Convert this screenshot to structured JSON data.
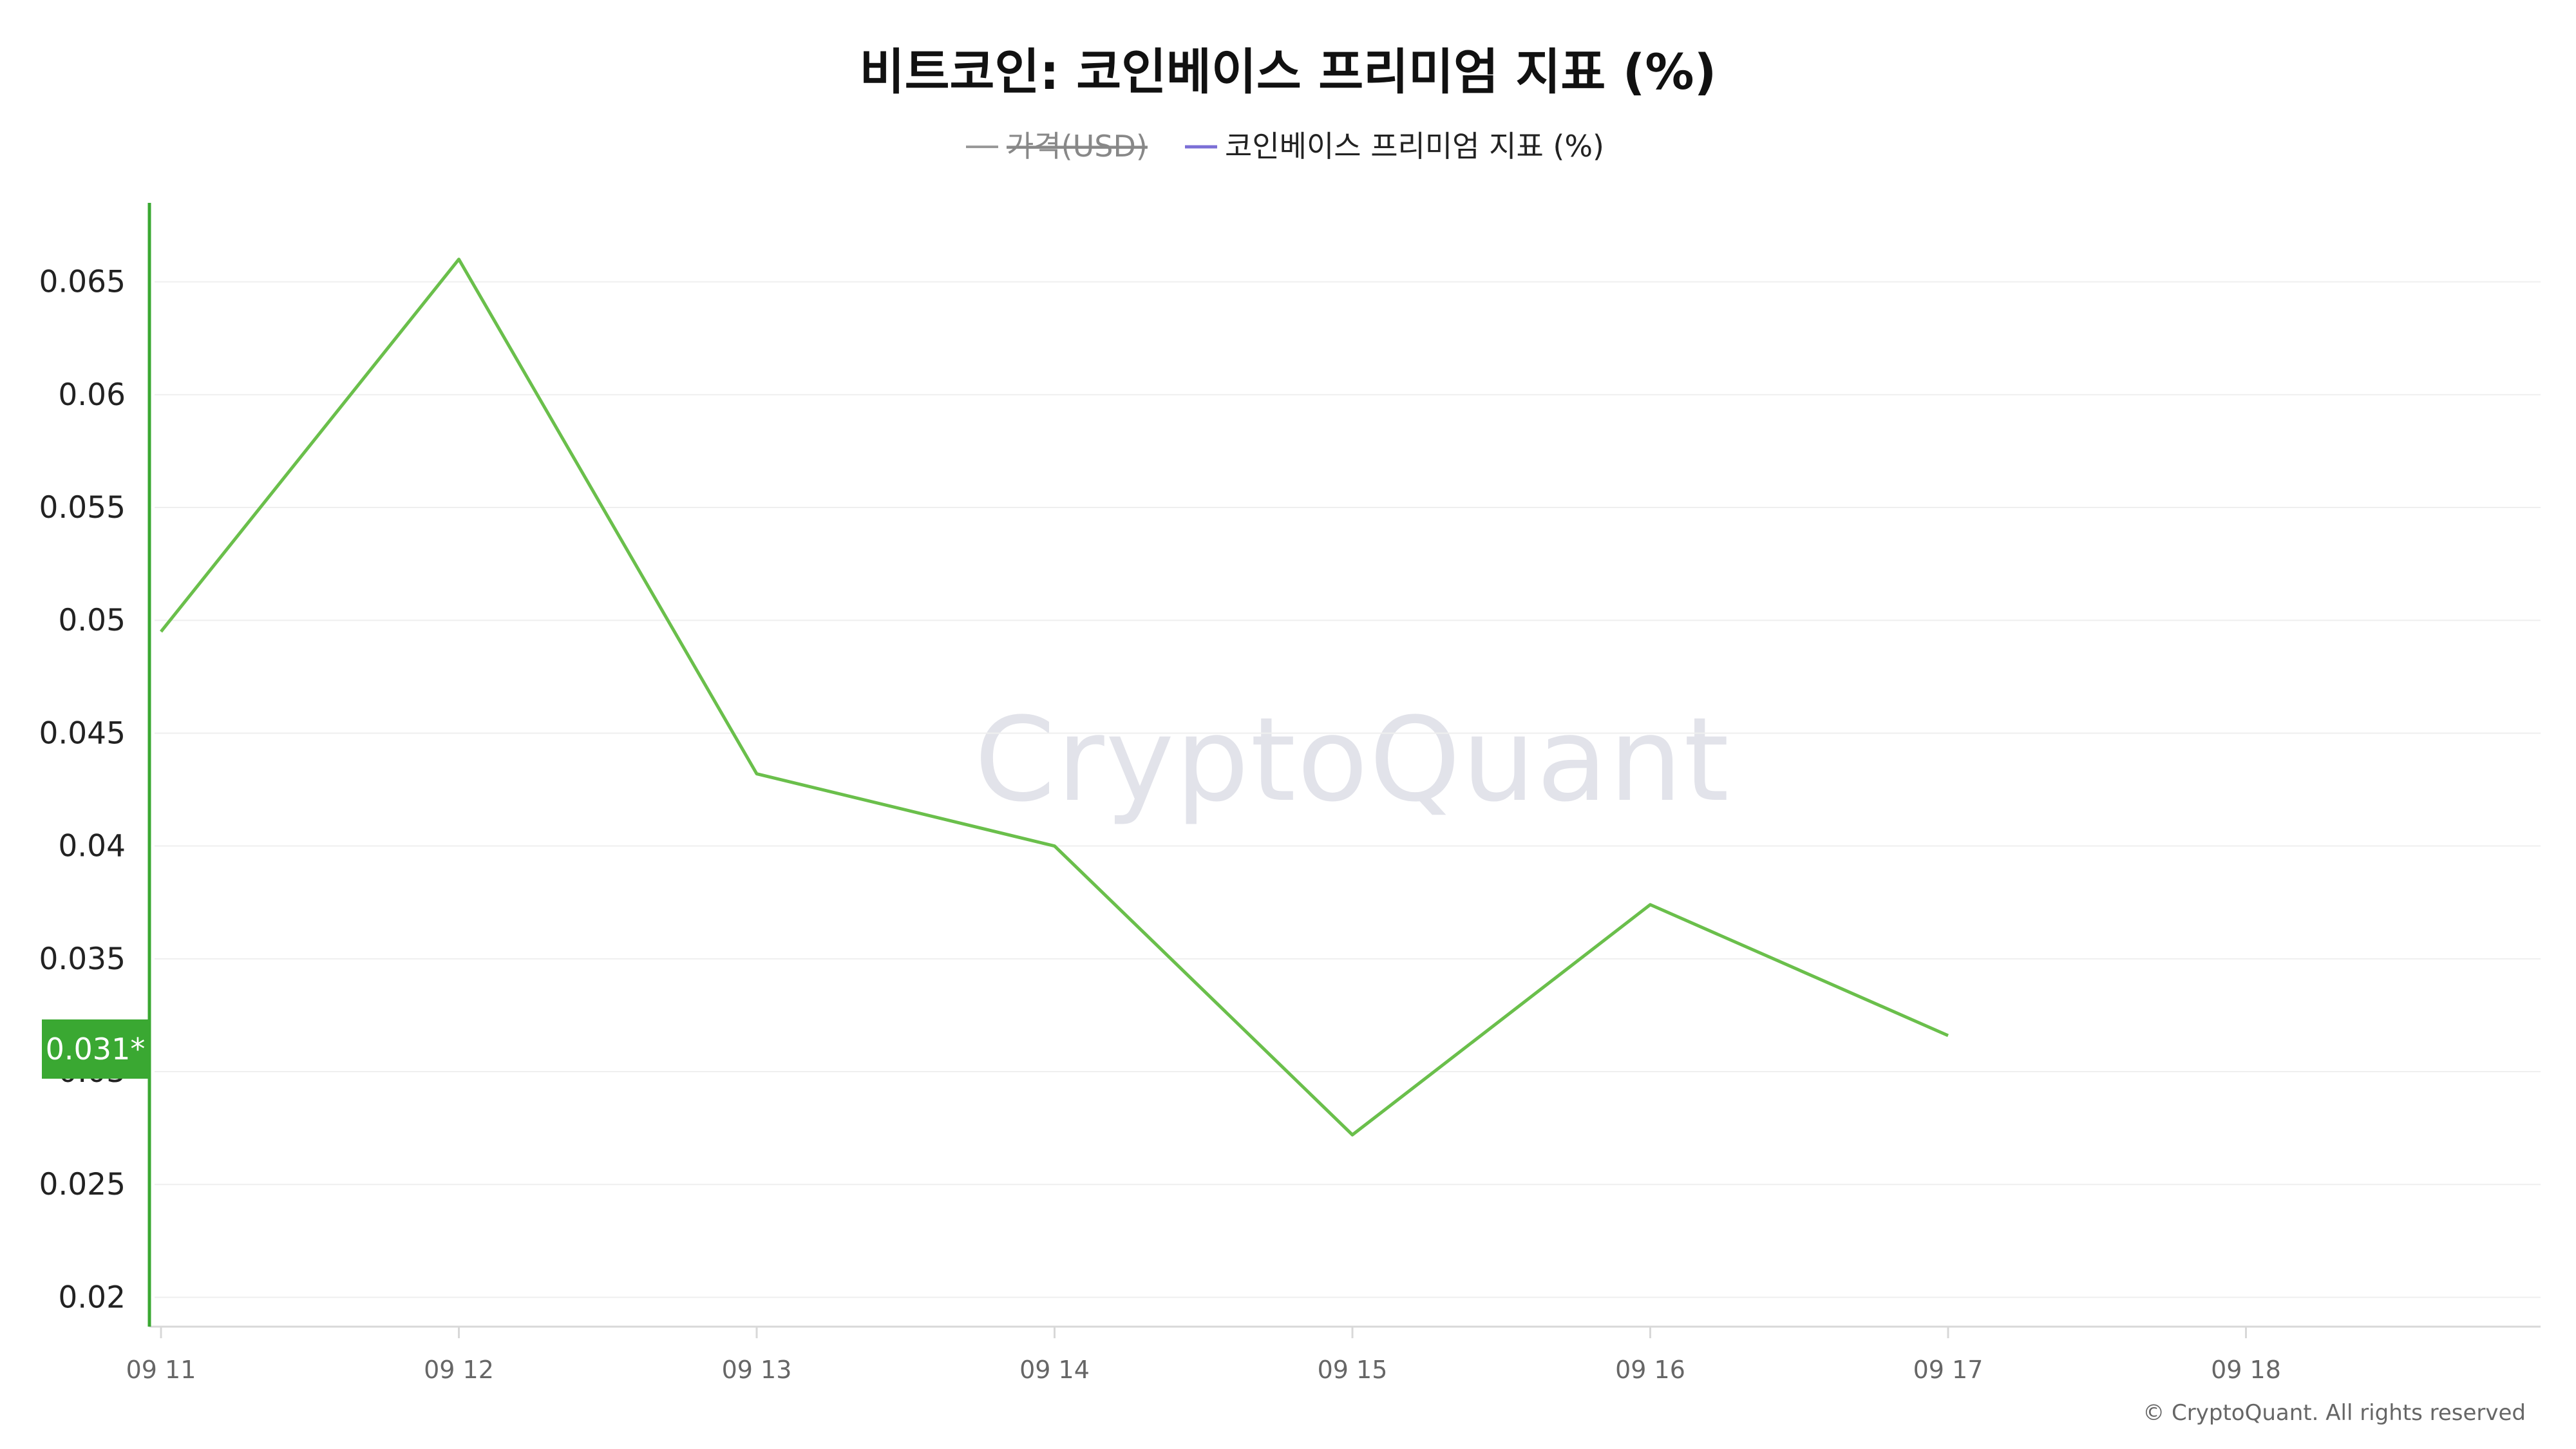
{
  "chart_data": {
    "type": "line",
    "title": "비트코인: 코인베이스 프리미엄 지표 (%)",
    "legend": [
      {
        "label": "가격(USD)",
        "color": "#999999",
        "disabled": true
      },
      {
        "label": "코인베이스 프리미엄 지표 (%)",
        "color": "#7b6fd6",
        "disabled": false
      }
    ],
    "x": [
      "09 11",
      "09 12",
      "09 13",
      "09 14",
      "09 15",
      "09 16",
      "09 17"
    ],
    "x_ticks": [
      "09 11",
      "09 12",
      "09 13",
      "09 14",
      "09 15",
      "09 16",
      "09 17",
      "09 18"
    ],
    "series": [
      {
        "name": "코인베이스 프리미엄 지표 (%)",
        "color": "#6abf4b",
        "values": [
          0.0495,
          0.066,
          0.0432,
          0.04,
          0.0272,
          0.0374,
          0.0316
        ]
      }
    ],
    "y_ticks": [
      "0.02",
      "0.025",
      "0.03",
      "0.035",
      "0.04",
      "0.045",
      "0.05",
      "0.055",
      "0.06",
      "0.065"
    ],
    "ylim": [
      0.0187,
      0.0685
    ],
    "grid": true,
    "current_value_label": "0.031*",
    "current_value": 0.031,
    "accent_color": "#3aa832",
    "watermark": "CryptoQuant",
    "copyright": "© CryptoQuant. All rights reserved"
  }
}
